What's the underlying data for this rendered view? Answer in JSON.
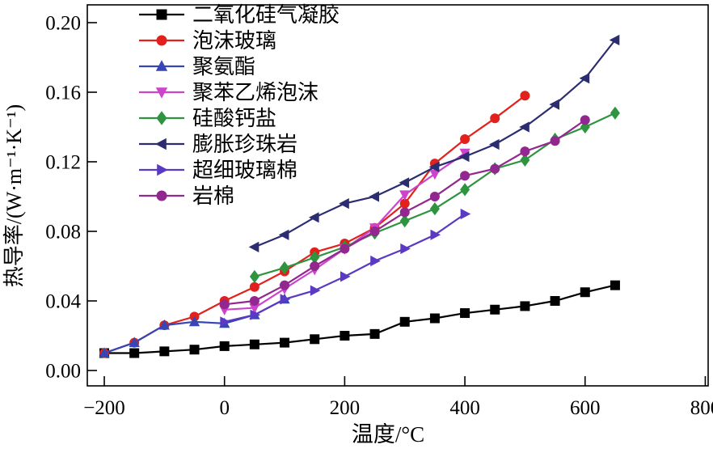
{
  "chart_data": {
    "type": "line",
    "title": "",
    "xlabel": "温度/°C",
    "ylabel": "热导率/(W·m⁻¹·K⁻¹)",
    "xlim": [
      -250,
      805
    ],
    "ylim": [
      -0.009,
      0.211
    ],
    "grid": false,
    "legend_position": "upper-left-inside",
    "x_ticks": {
      "values": [
        -200,
        0,
        200,
        400,
        600,
        800
      ],
      "labels": [
        "−200",
        "0",
        "200",
        "400",
        "600",
        "800"
      ]
    },
    "y_ticks": {
      "values": [
        0,
        0.04,
        0.08,
        0.12,
        0.16,
        0.2
      ],
      "labels": [
        "0.00",
        "0.04",
        "0.08",
        "0.12",
        "0.16",
        "0.20"
      ]
    },
    "series": [
      {
        "name": "二氧化硅气凝胶",
        "color": "#000000",
        "marker": "square",
        "x": [
          -200,
          -150,
          -100,
          -50,
          0,
          50,
          100,
          150,
          200,
          250,
          300,
          350,
          400,
          450,
          500,
          550,
          600,
          650
        ],
        "y": [
          0.01,
          0.01,
          0.011,
          0.012,
          0.014,
          0.015,
          0.016,
          0.018,
          0.02,
          0.021,
          0.028,
          0.03,
          0.033,
          0.035,
          0.037,
          0.04,
          0.045,
          0.049
        ]
      },
      {
        "name": "泡沫玻璃",
        "color": "#e2211c",
        "marker": "circle",
        "x": [
          -200,
          -150,
          -100,
          -50,
          0,
          50,
          100,
          150,
          200,
          250,
          300,
          350,
          400,
          450,
          500
        ],
        "y": [
          0.01,
          0.016,
          0.026,
          0.031,
          0.04,
          0.048,
          0.057,
          0.068,
          0.073,
          0.082,
          0.096,
          0.119,
          0.133,
          0.145,
          0.158
        ]
      },
      {
        "name": "聚氨酯",
        "color": "#3646b4",
        "marker": "triangle-up",
        "x": [
          -200,
          -150,
          -100,
          -50,
          0,
          50,
          100
        ],
        "y": [
          0.01,
          0.016,
          0.026,
          0.028,
          0.027,
          0.032,
          0.041
        ]
      },
      {
        "name": "聚苯乙烯泡沫",
        "color": "#cc44cc",
        "marker": "triangle-down",
        "x": [
          0,
          50,
          100,
          150,
          200,
          250,
          300,
          350,
          400
        ],
        "y": [
          0.035,
          0.036,
          0.047,
          0.058,
          0.07,
          0.082,
          0.101,
          0.113,
          0.125
        ]
      },
      {
        "name": "硅酸钙盐",
        "color": "#2e9440",
        "marker": "diamond",
        "x": [
          50,
          100,
          150,
          200,
          250,
          300,
          350,
          400,
          450,
          500,
          550,
          600,
          650
        ],
        "y": [
          0.054,
          0.059,
          0.065,
          0.071,
          0.079,
          0.086,
          0.093,
          0.104,
          0.116,
          0.121,
          0.133,
          0.14,
          0.148
        ]
      },
      {
        "name": "膨胀珍珠岩",
        "color": "#2b2d70",
        "marker": "triangle-left",
        "x": [
          50,
          100,
          150,
          200,
          250,
          300,
          350,
          400,
          450,
          500,
          550,
          600,
          650
        ],
        "y": [
          0.071,
          0.078,
          0.088,
          0.096,
          0.1,
          0.108,
          0.117,
          0.123,
          0.13,
          0.14,
          0.153,
          0.168,
          0.19
        ]
      },
      {
        "name": "超细玻璃棉",
        "color": "#5a3ac2",
        "marker": "triangle-right",
        "x": [
          0,
          50,
          100,
          150,
          200,
          250,
          300,
          350,
          400
        ],
        "y": [
          0.028,
          0.032,
          0.041,
          0.046,
          0.054,
          0.063,
          0.07,
          0.078,
          0.09
        ]
      },
      {
        "name": "岩棉",
        "color": "#92278f",
        "marker": "circle",
        "x": [
          0,
          50,
          100,
          150,
          200,
          250,
          300,
          350,
          400,
          450,
          500,
          550,
          600
        ],
        "y": [
          0.038,
          0.04,
          0.049,
          0.06,
          0.07,
          0.08,
          0.091,
          0.1,
          0.112,
          0.116,
          0.126,
          0.132,
          0.144
        ]
      }
    ]
  }
}
